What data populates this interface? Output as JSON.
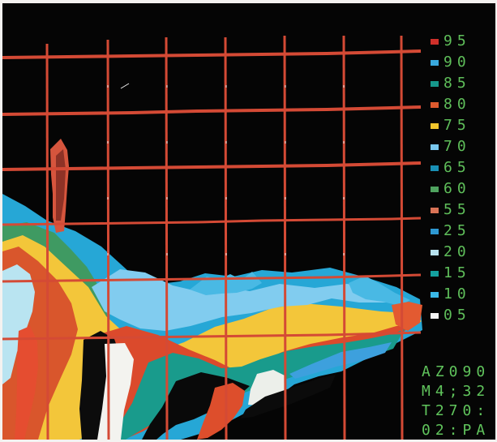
{
  "display": {
    "background": "#050505",
    "grid_color": "#d44a35"
  },
  "legend": {
    "items": [
      {
        "label": "95",
        "color": "#d0302a"
      },
      {
        "label": "90",
        "color": "#39a9de"
      },
      {
        "label": "85",
        "color": "#16978b"
      },
      {
        "label": "80",
        "color": "#dd5a2e"
      },
      {
        "label": "75",
        "color": "#f2c62c"
      },
      {
        "label": "70",
        "color": "#79c8ef"
      },
      {
        "label": "65",
        "color": "#198fb5"
      },
      {
        "label": "60",
        "color": "#4fa35f"
      },
      {
        "label": "55",
        "color": "#d97356"
      },
      {
        "label": "25",
        "color": "#2e98d2"
      },
      {
        "label": "20",
        "color": "#b8e2ef"
      },
      {
        "label": "15",
        "color": "#14a1a0"
      },
      {
        "label": "10",
        "color": "#3ab8e8"
      },
      {
        "label": "05",
        "color": "#f4f4f4"
      }
    ]
  },
  "readouts": {
    "azimuth": "AZ090",
    "time": "M4;32",
    "tilt": "T270:",
    "mode": "02:PA"
  }
}
